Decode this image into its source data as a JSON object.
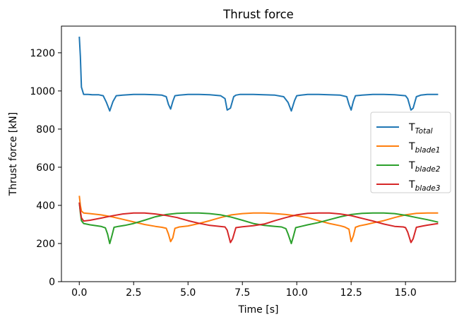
{
  "chart_data": {
    "type": "line",
    "title": "Thrust force",
    "xlabel": "Time [s]",
    "ylabel": "Thrust force [kN]",
    "xlim": [
      -0.82,
      17.3
    ],
    "ylim": [
      0,
      1340
    ],
    "xticks": [
      0.0,
      2.5,
      5.0,
      7.5,
      10.0,
      12.5,
      15.0
    ],
    "xtick_labels": [
      "0.0",
      "2.5",
      "5.0",
      "7.5",
      "10.0",
      "12.5",
      "15.0"
    ],
    "yticks": [
      0,
      200,
      400,
      600,
      800,
      1000,
      1200
    ],
    "ytick_labels": [
      "0",
      "200",
      "400",
      "600",
      "800",
      "1000",
      "1200"
    ],
    "grid": false,
    "legend_position": "center-right",
    "series": [
      {
        "name": "T",
        "name_sub": "Total",
        "color": "#1f77b4",
        "x": [
          0.0,
          0.05,
          0.1,
          0.2,
          0.4,
          0.6,
          0.9,
          1.1,
          1.25,
          1.4,
          1.55,
          1.7,
          2.0,
          2.5,
          3.0,
          3.5,
          3.8,
          4.0,
          4.1,
          4.2,
          4.3,
          4.4,
          4.6,
          5.0,
          5.5,
          6.0,
          6.5,
          6.7,
          6.8,
          6.95,
          7.1,
          7.2,
          7.4,
          8.0,
          8.5,
          9.0,
          9.4,
          9.6,
          9.75,
          9.9,
          10.0,
          10.2,
          10.5,
          11.0,
          11.5,
          12.0,
          12.3,
          12.4,
          12.5,
          12.6,
          12.7,
          13.0,
          13.5,
          14.0,
          14.5,
          15.0,
          15.1,
          15.25,
          15.35,
          15.5,
          15.7,
          16.0,
          16.5
        ],
        "y": [
          1285,
          1180,
          1020,
          982,
          982,
          980,
          980,
          975,
          940,
          895,
          945,
          975,
          978,
          982,
          982,
          980,
          978,
          970,
          930,
          905,
          945,
          975,
          978,
          982,
          982,
          980,
          975,
          960,
          900,
          910,
          970,
          978,
          982,
          982,
          980,
          978,
          970,
          940,
          895,
          950,
          975,
          978,
          982,
          982,
          980,
          978,
          970,
          930,
          900,
          945,
          975,
          978,
          982,
          982,
          980,
          975,
          960,
          900,
          910,
          970,
          978,
          982,
          982
        ]
      },
      {
        "name": "T",
        "name_sub": "blade1",
        "color": "#ff7f0e",
        "x": [
          0.0,
          0.05,
          0.1,
          0.2,
          0.5,
          1.0,
          1.5,
          2.0,
          2.5,
          3.0,
          3.5,
          3.8,
          4.0,
          4.1,
          4.2,
          4.3,
          4.4,
          4.6,
          5.0,
          5.5,
          6.0,
          6.5,
          7.0,
          7.5,
          8.0,
          8.5,
          9.0,
          9.5,
          10.0,
          10.5,
          11.0,
          11.5,
          12.0,
          12.2,
          12.4,
          12.5,
          12.6,
          12.7,
          12.9,
          13.2,
          13.5,
          14.0,
          14.5,
          15.0,
          15.5,
          16.0,
          16.5
        ],
        "y": [
          450,
          400,
          370,
          360,
          357,
          350,
          340,
          327,
          313,
          300,
          290,
          285,
          280,
          250,
          210,
          230,
          280,
          287,
          292,
          305,
          320,
          336,
          350,
          357,
          360,
          360,
          357,
          352,
          345,
          336,
          320,
          305,
          293,
          287,
          275,
          210,
          240,
          285,
          293,
          300,
          308,
          320,
          336,
          350,
          358,
          360,
          360
        ]
      },
      {
        "name": "T",
        "name_sub": "blade2",
        "color": "#2ca02c",
        "x": [
          0.0,
          0.05,
          0.1,
          0.2,
          0.5,
          1.0,
          1.2,
          1.3,
          1.4,
          1.5,
          1.6,
          1.8,
          2.1,
          2.5,
          3.0,
          3.5,
          4.0,
          4.5,
          5.0,
          5.5,
          6.0,
          6.5,
          7.0,
          7.5,
          8.0,
          8.5,
          9.0,
          9.3,
          9.5,
          9.6,
          9.75,
          9.85,
          9.95,
          10.2,
          10.5,
          11.0,
          11.5,
          12.0,
          12.5,
          13.0,
          13.5,
          14.0,
          14.5,
          15.0,
          15.5,
          16.0,
          16.5
        ],
        "y": [
          415,
          360,
          320,
          305,
          298,
          290,
          282,
          250,
          200,
          240,
          285,
          290,
          295,
          305,
          322,
          340,
          352,
          358,
          360,
          360,
          357,
          350,
          338,
          322,
          305,
          295,
          290,
          287,
          278,
          250,
          200,
          240,
          283,
          290,
          298,
          310,
          325,
          340,
          352,
          358,
          360,
          360,
          357,
          348,
          336,
          325,
          312
        ]
      },
      {
        "name": "T",
        "name_sub": "blade3",
        "color": "#d62728",
        "x": [
          0.0,
          0.05,
          0.1,
          0.2,
          0.5,
          1.0,
          1.5,
          2.0,
          2.5,
          3.0,
          3.5,
          4.0,
          4.5,
          5.0,
          5.5,
          6.0,
          6.5,
          6.7,
          6.8,
          6.95,
          7.05,
          7.2,
          7.5,
          8.0,
          8.5,
          9.0,
          9.5,
          10.0,
          10.5,
          11.0,
          11.5,
          12.0,
          12.5,
          13.0,
          13.5,
          14.0,
          14.5,
          14.9,
          15.0,
          15.1,
          15.25,
          15.35,
          15.5,
          15.8,
          16.0,
          16.5
        ],
        "y": [
          415,
          370,
          335,
          318,
          322,
          333,
          345,
          355,
          360,
          360,
          355,
          347,
          336,
          320,
          306,
          295,
          289,
          287,
          270,
          205,
          225,
          283,
          288,
          293,
          302,
          320,
          336,
          350,
          358,
          360,
          360,
          355,
          346,
          332,
          318,
          302,
          290,
          287,
          283,
          260,
          205,
          225,
          285,
          292,
          296,
          305
        ]
      }
    ]
  }
}
